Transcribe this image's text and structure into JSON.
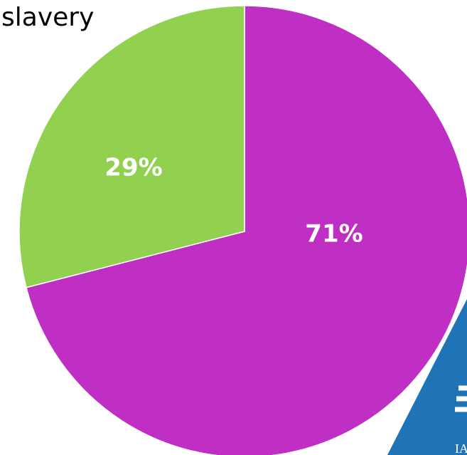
{
  "chart_data": {
    "type": "pie",
    "title": "slavery",
    "values": [
      71,
      29
    ],
    "value_labels": [
      "71%",
      "29%"
    ],
    "colors": [
      "#bf2fc4",
      "#92d050"
    ]
  }
}
